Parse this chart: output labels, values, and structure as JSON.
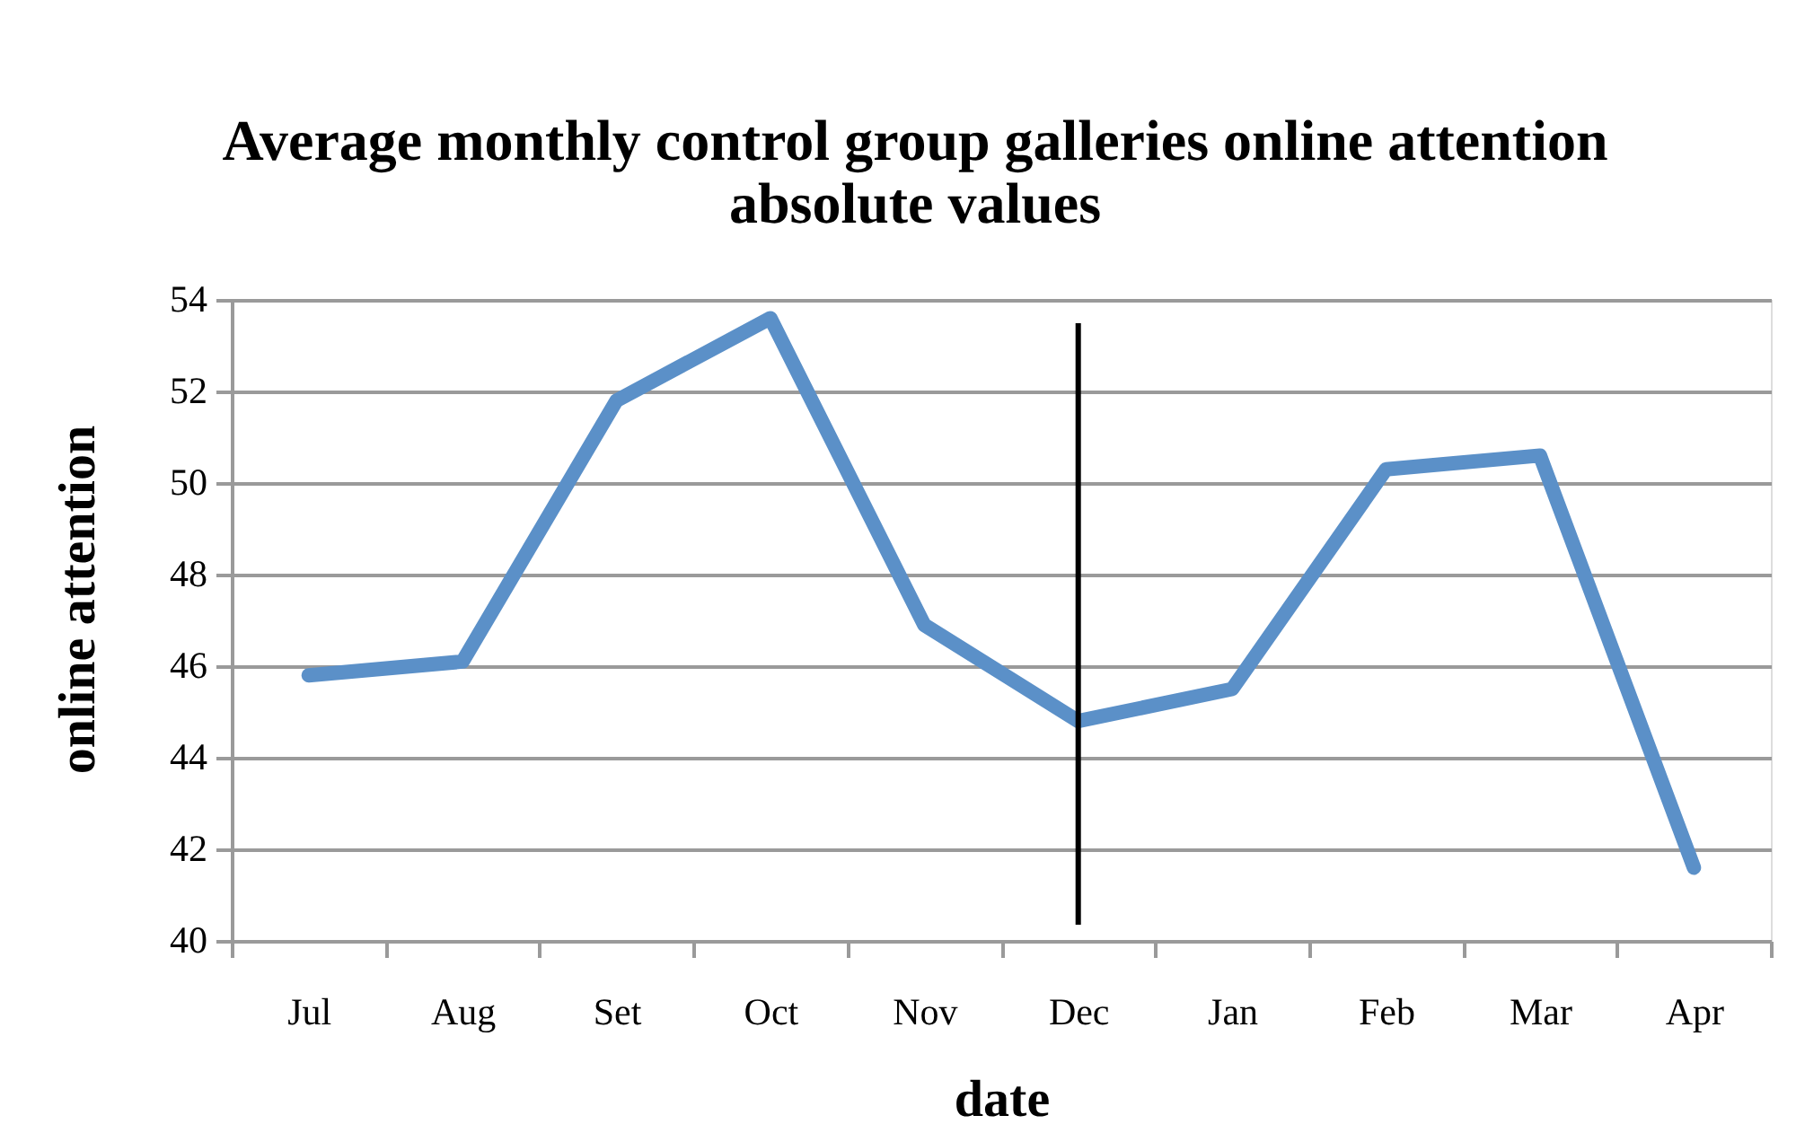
{
  "chart_data": {
    "type": "line",
    "title": "Average monthly control group galleries online attention absolute values",
    "xlabel": "date",
    "ylabel": "online attention",
    "categories": [
      "Jul",
      "Aug",
      "Set",
      "Oct",
      "Nov",
      "Dec",
      "Jan",
      "Feb",
      "Mar",
      "Apr"
    ],
    "values": [
      45.8,
      46.1,
      51.8,
      53.6,
      46.9,
      44.8,
      45.5,
      50.3,
      50.6,
      41.6
    ],
    "color": "#5b90c8",
    "ylim": [
      40,
      54
    ],
    "yticks": [
      40,
      42,
      44,
      46,
      48,
      50,
      52,
      54
    ],
    "grid": "y",
    "marker": "none",
    "line_style": "solid",
    "ref_lines": [
      {
        "axis": "x",
        "value": "Dec",
        "color": "#000000"
      }
    ]
  }
}
